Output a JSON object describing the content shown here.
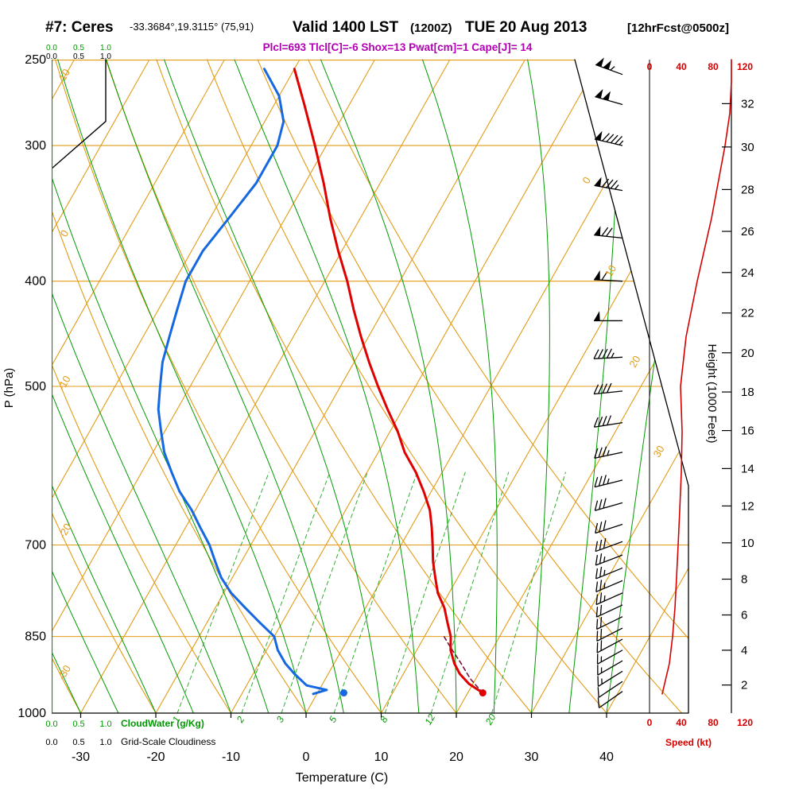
{
  "header": {
    "station": "#7: Ceres",
    "coords": "-33.3684°,19.3115° (75,91)",
    "valid": "Valid 1400 LST",
    "valid_z": "(1200Z)",
    "valid_date": "TUE 20 Aug 2013",
    "fcst": "[12hrFcst@0500z]",
    "stats": "Plcl=693 Tlcl[C]=-6 Shox=13 Pwat[cm]=1 Cape[J]= 14"
  },
  "axes": {
    "pressure": {
      "title": "P (hPa)",
      "ticks": [
        250,
        300,
        400,
        500,
        700,
        850,
        1000
      ]
    },
    "temperature": {
      "title": "Temperature (C)",
      "ticks": [
        -30,
        -20,
        -10,
        0,
        10,
        20,
        30,
        40
      ]
    },
    "height": {
      "title": "Height (1000 Feet)",
      "ticks": [
        2,
        4,
        6,
        8,
        10,
        12,
        14,
        16,
        18,
        20,
        22,
        24,
        26,
        28,
        30,
        32
      ]
    },
    "speed": {
      "title": "Speed (kt)",
      "ticks": [
        0,
        40,
        80,
        120
      ]
    },
    "cloudwater": {
      "title": "CloudWater (g/Kg)",
      "ticks": [
        "0.0",
        "0.5",
        "1.0"
      ]
    },
    "cloudiness": {
      "title": "Grid-Scale Cloudiness",
      "ticks": [
        "0.0",
        "0.5",
        "1.0"
      ]
    }
  },
  "chart_data": {
    "type": "skewt-log-p",
    "pressure_range_hpa": [
      250,
      1000
    ],
    "isotherm_step_c": 10,
    "isotherm_labels_right": [
      0,
      10,
      20,
      30
    ],
    "dry_adiabat_labels_left": [
      10,
      0,
      -10,
      -20,
      -30
    ],
    "mixing_ratio_lines_gkg": [
      1,
      2,
      3,
      5,
      8,
      12,
      20
    ],
    "temperature_profile": [
      [
        958,
        22
      ],
      [
        940,
        19.5
      ],
      [
        920,
        17.5
      ],
      [
        900,
        16
      ],
      [
        875,
        14.5
      ],
      [
        850,
        13.5
      ],
      [
        825,
        12
      ],
      [
        800,
        10.5
      ],
      [
        775,
        8.5
      ],
      [
        750,
        7
      ],
      [
        725,
        5.5
      ],
      [
        700,
        4.2
      ],
      [
        675,
        2.8
      ],
      [
        650,
        1.2
      ],
      [
        625,
        -1
      ],
      [
        600,
        -3.5
      ],
      [
        575,
        -6.5
      ],
      [
        550,
        -9
      ],
      [
        525,
        -12
      ],
      [
        500,
        -15
      ],
      [
        475,
        -18
      ],
      [
        450,
        -21
      ],
      [
        425,
        -24
      ],
      [
        400,
        -27
      ],
      [
        375,
        -30.5
      ],
      [
        350,
        -34
      ],
      [
        325,
        -37.5
      ],
      [
        300,
        -41.5
      ],
      [
        275,
        -46
      ],
      [
        255,
        -50
      ]
    ],
    "dewpoint_profile": [
      [
        960,
        -0.5
      ],
      [
        952,
        1
      ],
      [
        943,
        -2
      ],
      [
        920,
        -4.5
      ],
      [
        900,
        -6.5
      ],
      [
        875,
        -8.5
      ],
      [
        850,
        -10
      ],
      [
        825,
        -13
      ],
      [
        800,
        -16
      ],
      [
        775,
        -19
      ],
      [
        750,
        -21.5
      ],
      [
        725,
        -23.5
      ],
      [
        700,
        -25.5
      ],
      [
        675,
        -28
      ],
      [
        650,
        -30.5
      ],
      [
        625,
        -33.5
      ],
      [
        600,
        -36
      ],
      [
        575,
        -38.5
      ],
      [
        550,
        -40.5
      ],
      [
        525,
        -42.5
      ],
      [
        500,
        -44
      ],
      [
        475,
        -45.5
      ],
      [
        450,
        -46.5
      ],
      [
        425,
        -47.5
      ],
      [
        400,
        -48.5
      ],
      [
        375,
        -48.5
      ],
      [
        350,
        -47.5
      ],
      [
        325,
        -46.5
      ],
      [
        300,
        -46.5
      ],
      [
        285,
        -47.5
      ],
      [
        270,
        -50
      ],
      [
        255,
        -54
      ]
    ],
    "parcel_trace": [
      [
        958,
        22
      ],
      [
        930,
        19.3
      ],
      [
        900,
        16.9
      ],
      [
        870,
        14.3
      ],
      [
        850,
        12.6
      ]
    ],
    "surface_obs": {
      "pressure_hpa": 958,
      "temperature_c": 22,
      "dewpoint_c": 3.5
    },
    "wind_barbs": [
      [
        955,
        235,
        10
      ],
      [
        935,
        236,
        10
      ],
      [
        915,
        238,
        15
      ],
      [
        895,
        240,
        15
      ],
      [
        875,
        241,
        15
      ],
      [
        855,
        242,
        20
      ],
      [
        835,
        243,
        20
      ],
      [
        815,
        244,
        20
      ],
      [
        795,
        245,
        20
      ],
      [
        775,
        246,
        25
      ],
      [
        755,
        247,
        25
      ],
      [
        735,
        248,
        25
      ],
      [
        715,
        249,
        25
      ],
      [
        695,
        250,
        30
      ],
      [
        670,
        252,
        30
      ],
      [
        640,
        254,
        30
      ],
      [
        610,
        256,
        35
      ],
      [
        575,
        258,
        35
      ],
      [
        540,
        261,
        40
      ],
      [
        505,
        264,
        40
      ],
      [
        470,
        267,
        45
      ],
      [
        435,
        270,
        50
      ],
      [
        400,
        273,
        60
      ],
      [
        365,
        276,
        70
      ],
      [
        330,
        280,
        85
      ],
      [
        300,
        283,
        95
      ],
      [
        275,
        286,
        100
      ],
      [
        258,
        290,
        105
      ]
    ],
    "speed_profile_kt": [
      [
        960,
        16
      ],
      [
        900,
        25
      ],
      [
        850,
        29
      ],
      [
        800,
        32
      ],
      [
        750,
        34
      ],
      [
        700,
        36
      ],
      [
        650,
        38
      ],
      [
        600,
        40
      ],
      [
        550,
        41
      ],
      [
        500,
        39
      ],
      [
        450,
        46
      ],
      [
        400,
        60
      ],
      [
        350,
        78
      ],
      [
        300,
        95
      ],
      [
        280,
        101
      ],
      [
        262,
        103
      ],
      [
        250,
        103
      ]
    ],
    "cloud_fraction_profile": [
      [
        1000,
        0
      ],
      [
        315,
        0
      ],
      [
        285,
        1
      ],
      [
        250,
        1
      ]
    ]
  },
  "colors": {
    "grid_orange": "#e29b16",
    "green": "#009a00",
    "mixing_green": "#2fae2f",
    "temperature_red": "#df0000",
    "dewpoint_blue": "#1668e0",
    "speed_red": "#d40000",
    "parcel_maroon": "#7a1040",
    "stats_magenta": "#b400b4"
  }
}
